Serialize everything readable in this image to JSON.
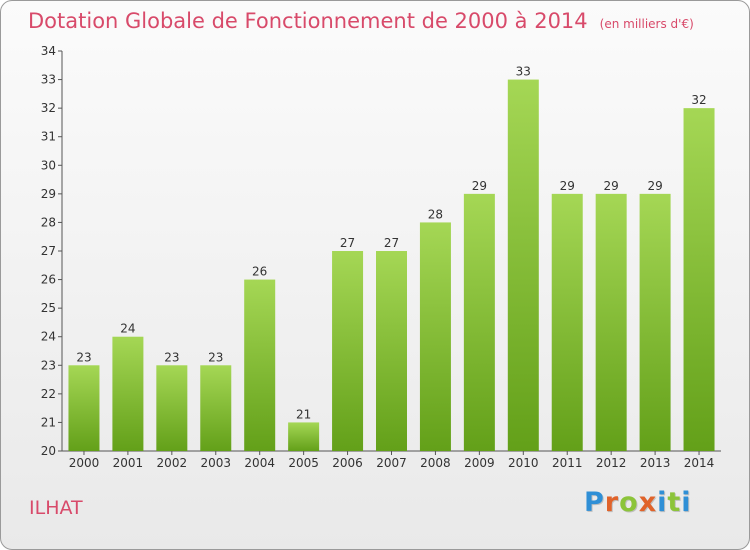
{
  "title": "Dotation Globale de Fonctionnement de 2000 à 2014",
  "unit_note": "(en milliers d'€)",
  "commune": "ILHAT",
  "brand": {
    "letters": [
      "P",
      "r",
      "o",
      "x",
      "i",
      "t",
      "i"
    ],
    "colors": [
      "#2f8fd6",
      "#e0632a",
      "#8cc43a",
      "#e0632a",
      "#2f8fd6",
      "#8cc43a",
      "#2f8fd6"
    ]
  },
  "colors": {
    "bar_light": "#a5d755",
    "bar_dark": "#63a019",
    "title": "#d84a6a",
    "axis_text": "#333333"
  },
  "chart_data": {
    "type": "bar",
    "categories": [
      "2000",
      "2001",
      "2002",
      "2003",
      "2004",
      "2005",
      "2006",
      "2007",
      "2008",
      "2009",
      "2010",
      "2011",
      "2012",
      "2013",
      "2014"
    ],
    "values": [
      23,
      24,
      23,
      23,
      26,
      21,
      27,
      27,
      28,
      29,
      33,
      29,
      29,
      29,
      32
    ],
    "title": "Dotation Globale de Fonctionnement de 2000 à 2014",
    "xlabel": "",
    "ylabel": "",
    "ylim": [
      20,
      34
    ],
    "yticks": [
      20,
      21,
      22,
      23,
      24,
      25,
      26,
      27,
      28,
      29,
      30,
      31,
      32,
      33,
      34
    ],
    "grid": false,
    "data_labels": true
  }
}
